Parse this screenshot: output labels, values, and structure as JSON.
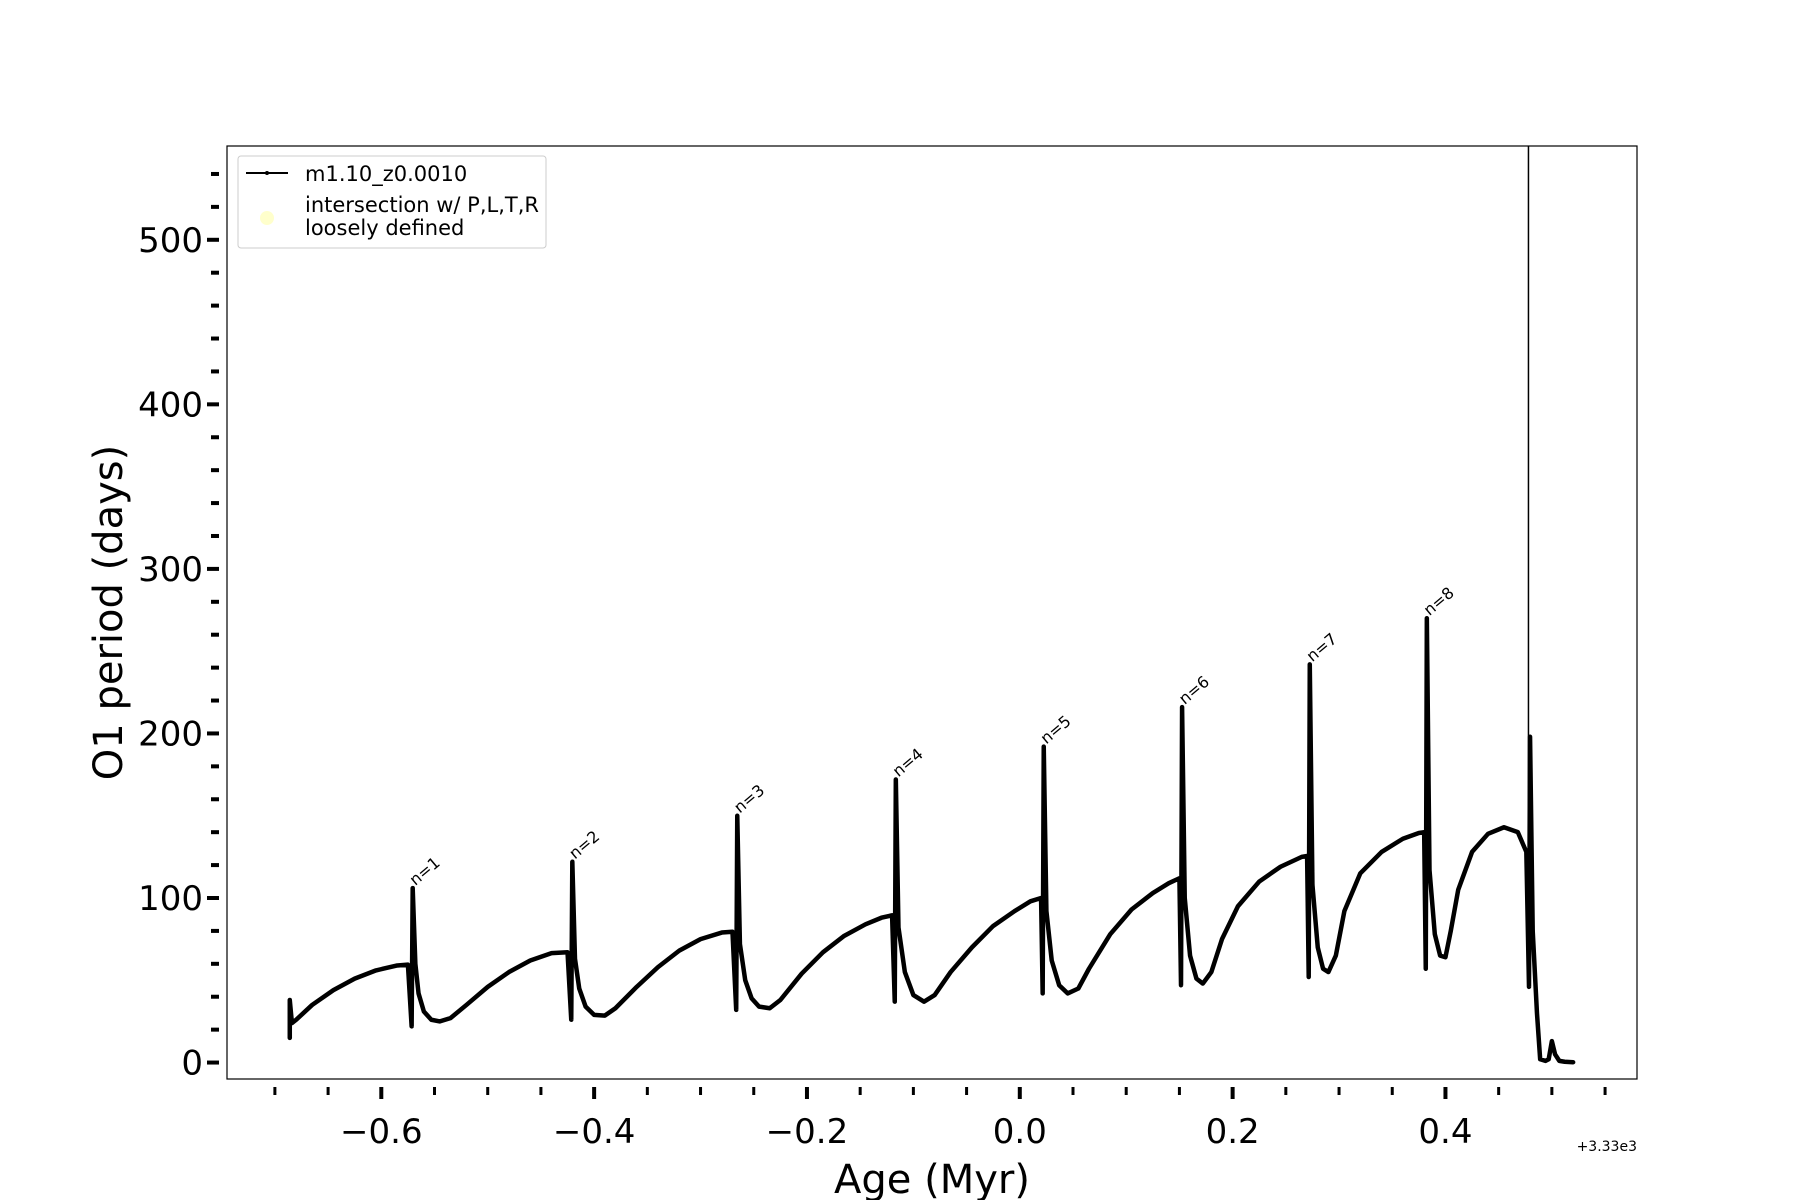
{
  "chart_data": {
    "type": "line",
    "xlabel": "Age (Myr)",
    "ylabel": "O1 period (days)",
    "x_offset_text": "+3.33e3",
    "xlim": [
      -0.745,
      0.58
    ],
    "ylim": [
      -10,
      557
    ],
    "x_ticks": [
      {
        "value": -0.6,
        "label": "−0.6"
      },
      {
        "value": -0.4,
        "label": "−0.4"
      },
      {
        "value": -0.2,
        "label": "−0.2"
      },
      {
        "value": 0.0,
        "label": "0.0"
      },
      {
        "value": 0.2,
        "label": "0.2"
      },
      {
        "value": 0.4,
        "label": "0.4"
      }
    ],
    "y_ticks": [
      {
        "value": 0,
        "label": "0"
      },
      {
        "value": 100,
        "label": "100"
      },
      {
        "value": 200,
        "label": "200"
      },
      {
        "value": 300,
        "label": "300"
      },
      {
        "value": 400,
        "label": "400"
      },
      {
        "value": 500,
        "label": "500"
      }
    ],
    "legend": {
      "placement": "top-left",
      "entries": [
        {
          "label": "m1.10_z0.0010",
          "kind": "line",
          "color": "#000000"
        },
        {
          "label": "intersection w/ P,L,T,R",
          "label2": "loosely defined",
          "kind": "dot",
          "color": "#ffffcc"
        }
      ]
    },
    "vertical_line_x": 0.478,
    "series": [
      {
        "name": "m1.10_z0.0010",
        "color": "#000000",
        "points": [
          [
            -0.686,
            28
          ],
          [
            -0.686,
            15
          ],
          [
            -0.686,
            38
          ],
          [
            -0.684,
            24
          ],
          [
            -0.68,
            26
          ],
          [
            -0.665,
            35
          ],
          [
            -0.645,
            44
          ],
          [
            -0.625,
            51
          ],
          [
            -0.605,
            56
          ],
          [
            -0.585,
            59
          ],
          [
            -0.575,
            59.5
          ],
          [
            -0.5715,
            22
          ],
          [
            -0.5705,
            106
          ],
          [
            -0.568,
            60
          ],
          [
            -0.565,
            42
          ],
          [
            -0.56,
            31
          ],
          [
            -0.553,
            26
          ],
          [
            -0.545,
            25
          ],
          [
            -0.535,
            27
          ],
          [
            -0.52,
            35
          ],
          [
            -0.5,
            46
          ],
          [
            -0.48,
            55
          ],
          [
            -0.46,
            62
          ],
          [
            -0.44,
            66.5
          ],
          [
            -0.425,
            67
          ],
          [
            -0.4215,
            26
          ],
          [
            -0.4205,
            122
          ],
          [
            -0.418,
            63
          ],
          [
            -0.414,
            45
          ],
          [
            -0.408,
            34
          ],
          [
            -0.4,
            29
          ],
          [
            -0.39,
            28.5
          ],
          [
            -0.38,
            33
          ],
          [
            -0.36,
            46
          ],
          [
            -0.34,
            58
          ],
          [
            -0.32,
            68
          ],
          [
            -0.3,
            75
          ],
          [
            -0.28,
            79
          ],
          [
            -0.27,
            79.5
          ],
          [
            -0.2665,
            32
          ],
          [
            -0.2655,
            150
          ],
          [
            -0.263,
            72
          ],
          [
            -0.258,
            50
          ],
          [
            -0.252,
            39
          ],
          [
            -0.245,
            34
          ],
          [
            -0.235,
            33
          ],
          [
            -0.225,
            38
          ],
          [
            -0.205,
            54
          ],
          [
            -0.185,
            67
          ],
          [
            -0.165,
            77
          ],
          [
            -0.145,
            84
          ],
          [
            -0.13,
            88
          ],
          [
            -0.12,
            89.5
          ],
          [
            -0.1175,
            37
          ],
          [
            -0.1165,
            172
          ],
          [
            -0.114,
            82
          ],
          [
            -0.108,
            55
          ],
          [
            -0.1,
            41
          ],
          [
            -0.09,
            37
          ],
          [
            -0.08,
            41
          ],
          [
            -0.065,
            55
          ],
          [
            -0.045,
            70
          ],
          [
            -0.025,
            83
          ],
          [
            -0.005,
            92
          ],
          [
            0.01,
            98
          ],
          [
            0.02,
            100
          ],
          [
            0.0215,
            42
          ],
          [
            0.0225,
            192
          ],
          [
            0.025,
            92
          ],
          [
            0.03,
            62
          ],
          [
            0.037,
            47
          ],
          [
            0.045,
            42
          ],
          [
            0.055,
            45
          ],
          [
            0.065,
            57
          ],
          [
            0.085,
            78
          ],
          [
            0.105,
            93
          ],
          [
            0.125,
            103
          ],
          [
            0.14,
            109
          ],
          [
            0.15,
            112
          ],
          [
            0.1515,
            47
          ],
          [
            0.1525,
            216
          ],
          [
            0.155,
            100
          ],
          [
            0.16,
            65
          ],
          [
            0.166,
            51
          ],
          [
            0.172,
            48
          ],
          [
            0.18,
            55
          ],
          [
            0.19,
            75
          ],
          [
            0.205,
            95
          ],
          [
            0.225,
            110
          ],
          [
            0.245,
            119
          ],
          [
            0.265,
            125
          ],
          [
            0.27,
            125.5
          ],
          [
            0.2715,
            52
          ],
          [
            0.2725,
            242
          ],
          [
            0.275,
            108
          ],
          [
            0.28,
            70
          ],
          [
            0.285,
            57
          ],
          [
            0.29,
            55
          ],
          [
            0.297,
            65
          ],
          [
            0.305,
            92
          ],
          [
            0.32,
            115
          ],
          [
            0.34,
            128
          ],
          [
            0.36,
            136
          ],
          [
            0.375,
            139.5
          ],
          [
            0.38,
            140
          ],
          [
            0.3815,
            57
          ],
          [
            0.3825,
            270
          ],
          [
            0.385,
            117
          ],
          [
            0.39,
            78
          ],
          [
            0.395,
            65
          ],
          [
            0.4,
            64
          ],
          [
            0.405,
            80
          ],
          [
            0.412,
            105
          ],
          [
            0.425,
            128
          ],
          [
            0.44,
            139
          ],
          [
            0.455,
            143
          ],
          [
            0.468,
            140
          ],
          [
            0.476,
            128
          ],
          [
            0.4785,
            46
          ],
          [
            0.4795,
            198
          ],
          [
            0.482,
            80
          ],
          [
            0.486,
            30
          ],
          [
            0.489,
            2
          ],
          [
            0.494,
            1
          ],
          [
            0.497,
            2
          ],
          [
            0.5,
            13
          ],
          [
            0.503,
            5
          ],
          [
            0.507,
            1
          ],
          [
            0.512,
            0.5
          ],
          [
            0.52,
            0.2
          ]
        ]
      }
    ],
    "annotations": [
      {
        "text": "n=1",
        "x": -0.57,
        "y": 106
      },
      {
        "text": "n=2",
        "x": -0.42,
        "y": 122
      },
      {
        "text": "n=3",
        "x": -0.265,
        "y": 150
      },
      {
        "text": "n=4",
        "x": -0.116,
        "y": 172
      },
      {
        "text": "n=5",
        "x": 0.023,
        "y": 192
      },
      {
        "text": "n=6",
        "x": 0.153,
        "y": 216
      },
      {
        "text": "n=7",
        "x": 0.273,
        "y": 242
      },
      {
        "text": "n=8",
        "x": 0.383,
        "y": 270
      }
    ]
  }
}
